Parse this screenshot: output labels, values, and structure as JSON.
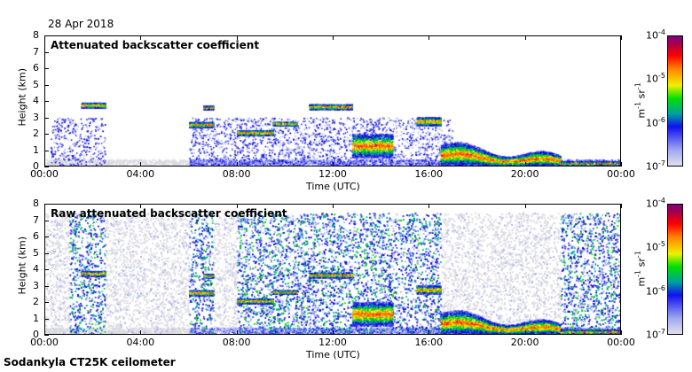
{
  "date": "28 Apr 2018",
  "footer": "Sodankyla CT25K ceilometer",
  "chart_data": [
    {
      "type": "heatmap",
      "title": "Attenuated backscatter coefficient",
      "xlabel": "Time (UTC)",
      "ylabel": "Height (km)",
      "xlim": [
        0,
        24
      ],
      "ylim": [
        0,
        8
      ],
      "xticks": [
        "00:00",
        "04:00",
        "08:00",
        "12:00",
        "16:00",
        "20:00",
        "00:00"
      ],
      "yticks": [
        "0",
        "1",
        "2",
        "3",
        "4",
        "5",
        "6",
        "7",
        "8"
      ],
      "colorbar": {
        "label": "m-1 sr-1",
        "scale": "log",
        "range": [
          1e-07,
          0.0001
        ],
        "ticks": [
          "10-7",
          "10-6",
          "10-5",
          "10-4"
        ]
      },
      "features": [
        {
          "kind": "cloud",
          "t": [
            1.5,
            2.5
          ],
          "h": [
            3.6,
            3.9
          ]
        },
        {
          "kind": "cloud",
          "t": [
            6.0,
            7.0
          ],
          "h": [
            2.4,
            2.7
          ]
        },
        {
          "kind": "cloud",
          "t": [
            6.6,
            7.0
          ],
          "h": [
            3.5,
            3.7
          ]
        },
        {
          "kind": "cloud",
          "t": [
            8.0,
            9.5
          ],
          "h": [
            1.9,
            2.2
          ]
        },
        {
          "kind": "cloud",
          "t": [
            9.5,
            10.5
          ],
          "h": [
            2.5,
            2.7
          ]
        },
        {
          "kind": "cloud",
          "t": [
            11.0,
            12.8
          ],
          "h": [
            3.5,
            3.8
          ]
        },
        {
          "kind": "cloud",
          "t": [
            12.8,
            14.5
          ],
          "h": [
            0.5,
            2.0
          ]
        },
        {
          "kind": "cloud",
          "t": [
            15.5,
            16.5
          ],
          "h": [
            2.5,
            3.0
          ]
        },
        {
          "kind": "boundary_layer",
          "t": [
            16.5,
            21.5
          ],
          "h": [
            0.3,
            1.2
          ]
        },
        {
          "kind": "boundary_layer",
          "t": [
            21.5,
            24
          ],
          "h": [
            0.05,
            0.25
          ]
        }
      ]
    },
    {
      "type": "heatmap",
      "title": "Raw attenuated backscatter coefficient",
      "xlabel": "Time (UTC)",
      "ylabel": "Height (km)",
      "xlim": [
        0,
        24
      ],
      "ylim": [
        0,
        8
      ],
      "xticks": [
        "00:00",
        "04:00",
        "08:00",
        "12:00",
        "16:00",
        "20:00",
        "00:00"
      ],
      "yticks": [
        "0",
        "1",
        "2",
        "3",
        "4",
        "5",
        "6",
        "7",
        "8"
      ],
      "colorbar": {
        "label": "m-1 sr-1",
        "scale": "log",
        "range": [
          1e-07,
          0.0001
        ],
        "ticks": [
          "10-7",
          "10-6",
          "10-5",
          "10-4"
        ]
      },
      "noise_periods": [
        [
          1.0,
          2.5
        ],
        [
          6.0,
          7.0
        ],
        [
          8.0,
          16.5
        ],
        [
          21.5,
          24
        ]
      ]
    }
  ]
}
